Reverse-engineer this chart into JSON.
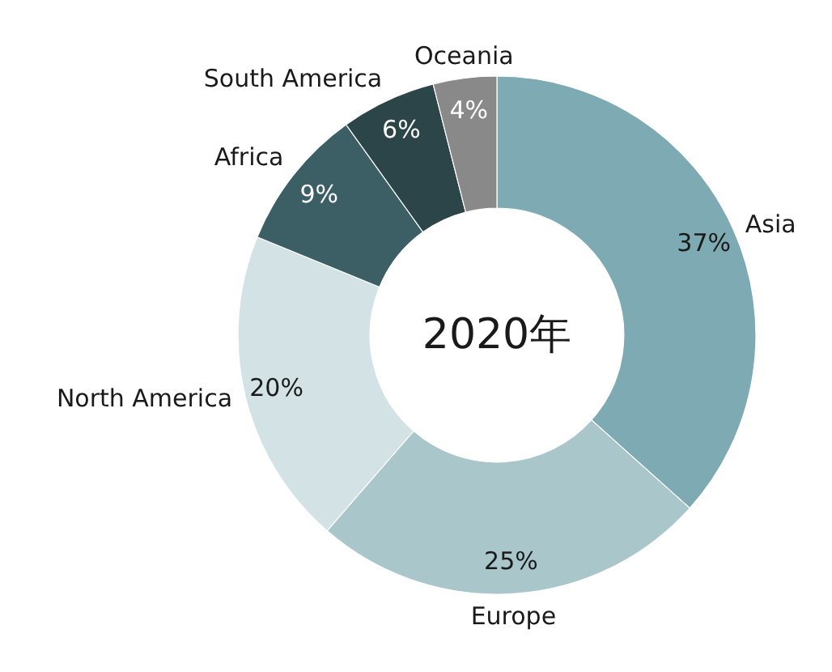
{
  "chart_data": {
    "type": "donut",
    "title": "2020年",
    "categories": [
      "Asia",
      "Europe",
      "North America",
      "Africa",
      "South America",
      "Oceania"
    ],
    "values": [
      37,
      25,
      20,
      9,
      6,
      4
    ],
    "value_labels": [
      "37%",
      "25%",
      "20%",
      "9%",
      "6%",
      "4%"
    ],
    "colors": [
      "#7eaab3",
      "#a9c6cb",
      "#d2e2e5",
      "#3b5f65",
      "#2c4549",
      "#898989"
    ]
  }
}
